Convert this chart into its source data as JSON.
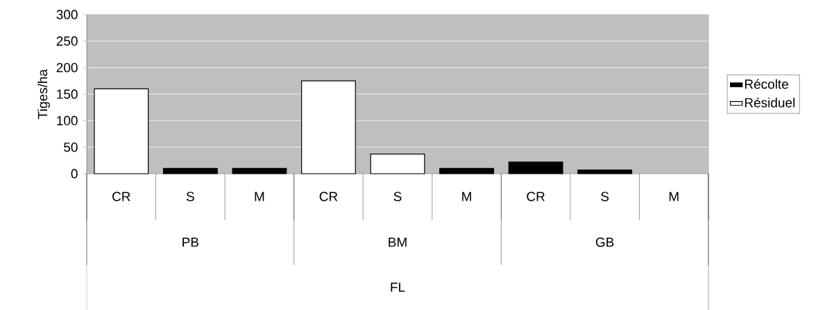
{
  "chart_data": {
    "type": "bar",
    "stacked": true,
    "ylabel": "Tiges/ha",
    "categories": [
      "CR",
      "S",
      "M",
      "CR",
      "S",
      "M",
      "CR",
      "S",
      "M"
    ],
    "annotations": [
      "PB",
      "BM",
      "GB",
      "FL"
    ],
    "series": [
      {
        "name": "Récolte",
        "color": "#000000",
        "values": [
          null,
          10,
          10,
          null,
          null,
          10,
          22,
          7,
          null
        ]
      },
      {
        "name": "Résiduel",
        "color": "#ffffff",
        "values": [
          160,
          null,
          null,
          175,
          37,
          null,
          null,
          null,
          null
        ]
      }
    ],
    "ylim": [
      0,
      300
    ],
    "yticks": [
      0,
      50,
      100,
      150,
      200,
      250,
      300
    ],
    "grid": "y",
    "legend": "right"
  }
}
